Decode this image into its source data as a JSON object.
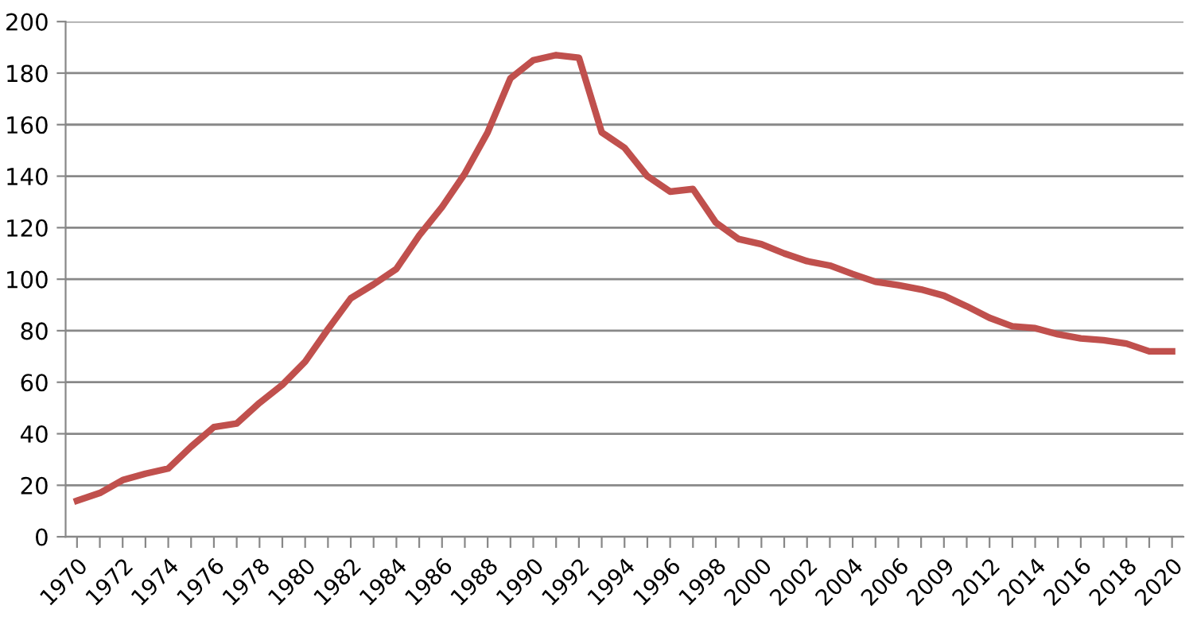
{
  "chart_data": {
    "type": "line",
    "categories": [
      "1970",
      null,
      "1972",
      null,
      "1974",
      null,
      "1976",
      null,
      "1978",
      null,
      "1980",
      null,
      "1982",
      null,
      "1984",
      null,
      "1986",
      null,
      "1988",
      null,
      "1990",
      null,
      "1992",
      null,
      "1994",
      null,
      "1996",
      null,
      "1998",
      null,
      "2000",
      null,
      "2002",
      null,
      "2004",
      null,
      "2006",
      null,
      "2009",
      null,
      "2012",
      null,
      "2014",
      null,
      "2016",
      null,
      "2018",
      null,
      "2020"
    ],
    "series": [
      {
        "color": "#c0504d",
        "values": [
          14,
          17,
          22,
          24.5,
          26.5,
          35,
          42.6,
          44,
          52,
          59,
          68,
          80.6,
          92.6,
          98,
          104,
          117,
          128,
          141,
          157,
          178,
          185,
          187,
          186,
          157,
          151,
          140,
          134,
          135,
          122,
          115.6,
          113.6,
          110,
          107,
          105.3,
          102,
          99,
          97.7,
          96,
          93.6,
          89.5,
          85,
          81.7,
          81,
          78.6,
          77,
          76.3,
          75,
          72,
          72
        ]
      }
    ],
    "ylim": [
      0,
      200
    ],
    "yticks": [
      0,
      20,
      40,
      60,
      80,
      100,
      120,
      140,
      160,
      180,
      200
    ],
    "grid": "y",
    "legend": false,
    "marker": "none",
    "line_style": "solid"
  }
}
